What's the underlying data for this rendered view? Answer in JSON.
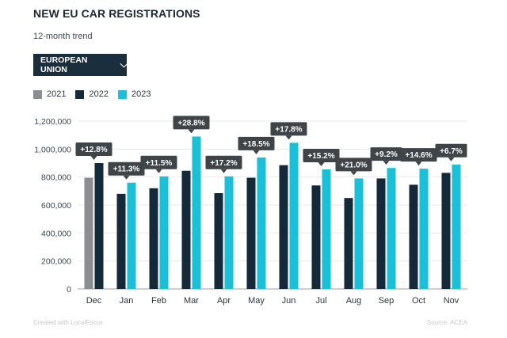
{
  "header": {
    "title": "NEW EU CAR REGISTRATIONS",
    "subtitle": "12-month trend"
  },
  "dropdown": {
    "label": "EUROPEAN UNION",
    "icon": "chevron-down-icon"
  },
  "legend": [
    {
      "label": "2021",
      "color": "#8a8e92"
    },
    {
      "label": "2022",
      "color": "#14293a"
    },
    {
      "label": "2023",
      "color": "#19c0d8"
    }
  ],
  "footer": {
    "left": "Created with LocalFocus",
    "right": "Source: ACEA"
  },
  "chart_data": {
    "type": "bar",
    "categories": [
      "Dec",
      "Jan",
      "Feb",
      "Mar",
      "Apr",
      "May",
      "Jun",
      "Jul",
      "Aug",
      "Sep",
      "Oct",
      "Nov"
    ],
    "series": [
      {
        "name": "2021",
        "color": "#8a8e92",
        "values": [
          795000,
          null,
          null,
          null,
          null,
          null,
          null,
          null,
          null,
          null,
          null,
          null
        ]
      },
      {
        "name": "2022",
        "color": "#14293a",
        "values": [
          900000,
          680000,
          720000,
          845000,
          685000,
          795000,
          885000,
          740000,
          650000,
          790000,
          745000,
          830000
        ]
      },
      {
        "name": "2023",
        "color": "#19c0d8",
        "values": [
          null,
          760000,
          805000,
          1090000,
          805000,
          940000,
          1045000,
          855000,
          790000,
          865000,
          860000,
          890000
        ]
      }
    ],
    "annotations": [
      "+12.8%",
      "+11.3%",
      "+11.5%",
      "+28.8%",
      "+17.2%",
      "+18.5%",
      "+17.8%",
      "+15.2%",
      "+21.0%",
      "+9.2%",
      "+14.6%",
      "+6.7%"
    ],
    "ylim": [
      0,
      1200000
    ],
    "yticks": [
      0,
      200000,
      400000,
      600000,
      800000,
      1000000,
      1200000
    ],
    "ytick_labels": [
      "0",
      "200,000",
      "400,000",
      "600,000",
      "800,000",
      "1,000,000",
      "1,200,000"
    ],
    "grid": true,
    "annotation_bg": "#3f4449"
  }
}
